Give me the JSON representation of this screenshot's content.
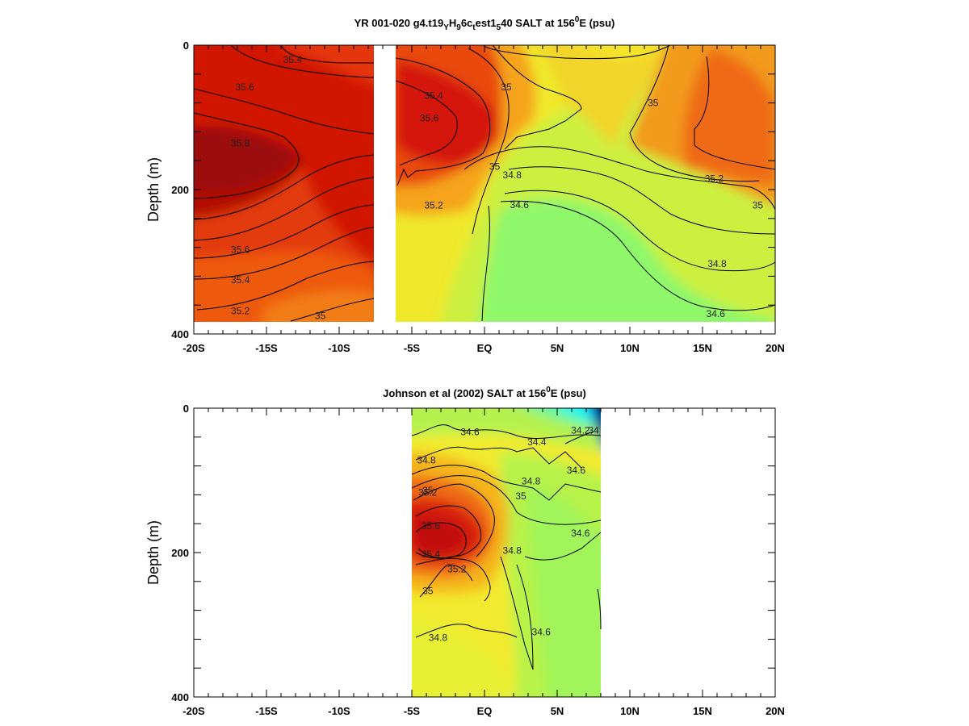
{
  "chart_data": [
    {
      "type": "heatmap",
      "title_parts": {
        "pre": "YR 001-020 g4.t19",
        "s1": "Y",
        "m1": "H",
        "s2": "9",
        "m2": "6c",
        "s3": "t",
        "m3": "est1",
        "s4": "5",
        "m4": "40 SALT at 156",
        "sup": "0",
        "post": "E (psu)"
      },
      "ylabel": "Depth (m)",
      "xlim": [
        -20,
        20
      ],
      "ylim": [
        0,
        400
      ],
      "y_inverted": true,
      "x_ticks": [
        -20,
        -15,
        -10,
        -5,
        0,
        5,
        10,
        15,
        20
      ],
      "x_tick_labels": [
        "-20S",
        "-15S",
        "-10S",
        "-5S",
        "EQ",
        "5N",
        "10N",
        "15N",
        "20N"
      ],
      "y_ticks": [
        0,
        200,
        400
      ],
      "y_tick_labels": [
        "0",
        "200",
        "400"
      ],
      "data_lat_range": [
        -20,
        20
      ],
      "data_depth_range": [
        0,
        383
      ],
      "missing_lat_band": [
        -7.6,
        -6.4
      ],
      "colorscale": "jet",
      "value_range": [
        34.0,
        35.8
      ],
      "contour_labels": [
        {
          "lat": -13.2,
          "depth": 20,
          "text": "35.4"
        },
        {
          "lat": -16.5,
          "depth": 58,
          "text": "35.6"
        },
        {
          "lat": -16.8,
          "depth": 136,
          "text": "35.8"
        },
        {
          "lat": -16.8,
          "depth": 283,
          "text": "35.6"
        },
        {
          "lat": -16.8,
          "depth": 325,
          "text": "35.4"
        },
        {
          "lat": -16.8,
          "depth": 368,
          "text": "35.2"
        },
        {
          "lat": -11.3,
          "depth": 375,
          "text": "35"
        },
        {
          "lat": -3.5,
          "depth": 70,
          "text": "35.4"
        },
        {
          "lat": -3.8,
          "depth": 101,
          "text": "35.6"
        },
        {
          "lat": -3.5,
          "depth": 222,
          "text": "35.2"
        },
        {
          "lat": 1.5,
          "depth": 58,
          "text": "35"
        },
        {
          "lat": 0.7,
          "depth": 168,
          "text": "35"
        },
        {
          "lat": 1.9,
          "depth": 180,
          "text": "34.8"
        },
        {
          "lat": 2.4,
          "depth": 221,
          "text": "34.6"
        },
        {
          "lat": 11.6,
          "depth": 80,
          "text": "35"
        },
        {
          "lat": 15.8,
          "depth": 185,
          "text": "35.2"
        },
        {
          "lat": 18.8,
          "depth": 222,
          "text": "35"
        },
        {
          "lat": 16.0,
          "depth": 303,
          "text": "34.8"
        },
        {
          "lat": 15.9,
          "depth": 372,
          "text": "34.6"
        }
      ]
    },
    {
      "type": "heatmap",
      "title_parts": {
        "pre": "Johnson et al (2002) SALT at 156",
        "sup": "0",
        "post": "E (psu)"
      },
      "ylabel": "Depth (m)",
      "xlim": [
        -20,
        20
      ],
      "ylim": [
        0,
        400
      ],
      "y_inverted": true,
      "x_ticks": [
        -20,
        -15,
        -10,
        -5,
        0,
        5,
        10,
        15,
        20
      ],
      "x_tick_labels": [
        "-20S",
        "-15S",
        "-10S",
        "-5S",
        "EQ",
        "5N",
        "10N",
        "15N",
        "20N"
      ],
      "y_ticks": [
        0,
        200,
        400
      ],
      "y_tick_labels": [
        "0",
        "200",
        "400"
      ],
      "data_lat_range": [
        -5,
        8
      ],
      "data_depth_range": [
        0,
        400
      ],
      "colorscale": "jet",
      "value_range": [
        34.0,
        35.8
      ],
      "contour_labels": [
        {
          "lat": -1.0,
          "depth": 33,
          "text": "34.6"
        },
        {
          "lat": 3.6,
          "depth": 47,
          "text": "34.4"
        },
        {
          "lat": 6.6,
          "depth": 31,
          "text": "34.2"
        },
        {
          "lat": 7.5,
          "depth": 31,
          "text": "34"
        },
        {
          "lat": -4.0,
          "depth": 72,
          "text": "34.8"
        },
        {
          "lat": 6.3,
          "depth": 86,
          "text": "34.6"
        },
        {
          "lat": -3.9,
          "depth": 114,
          "text": "35"
        },
        {
          "lat": -3.9,
          "depth": 117,
          "text": "35.2"
        },
        {
          "lat": 3.2,
          "depth": 101,
          "text": "34.8"
        },
        {
          "lat": 2.5,
          "depth": 122,
          "text": "35"
        },
        {
          "lat": -3.7,
          "depth": 163,
          "text": "35.6"
        },
        {
          "lat": 6.6,
          "depth": 173,
          "text": "34.6"
        },
        {
          "lat": -3.7,
          "depth": 202,
          "text": "35.4"
        },
        {
          "lat": 1.9,
          "depth": 197,
          "text": "34.8"
        },
        {
          "lat": -1.9,
          "depth": 223,
          "text": "35.2"
        },
        {
          "lat": -3.9,
          "depth": 253,
          "text": "35"
        },
        {
          "lat": 3.9,
          "depth": 310,
          "text": "34.6"
        },
        {
          "lat": -3.2,
          "depth": 318,
          "text": "34.8"
        }
      ]
    }
  ]
}
